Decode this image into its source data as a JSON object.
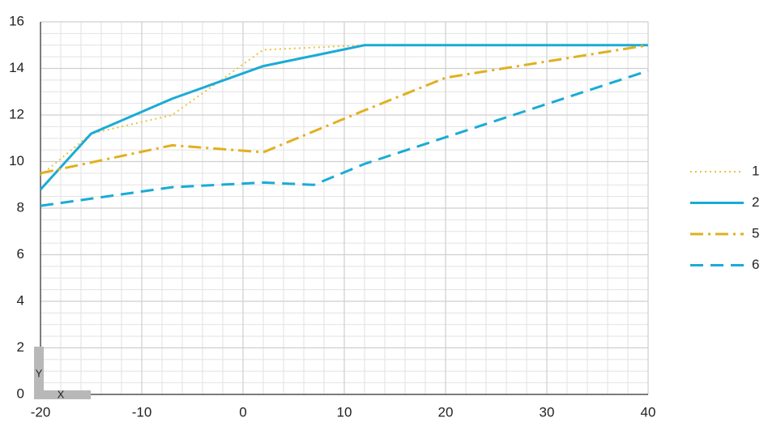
{
  "chart_data": {
    "type": "line",
    "xlabel": "X",
    "ylabel": "Y",
    "xlim": [
      -20,
      40
    ],
    "ylim": [
      0,
      16
    ],
    "xticks": [
      -20,
      -10,
      0,
      10,
      20,
      30,
      40
    ],
    "yticks": [
      0,
      2,
      4,
      6,
      8,
      10,
      12,
      14,
      16
    ],
    "minor_xticks": [
      -18,
      -16,
      -14,
      -12,
      -8,
      -6,
      -4,
      -2,
      2,
      4,
      6,
      8,
      12,
      14,
      16,
      18,
      22,
      24,
      26,
      28,
      32,
      34,
      36,
      38
    ],
    "minor_yticks": [
      0.5,
      1,
      1.5,
      2.5,
      3,
      3.5,
      4.5,
      5,
      5.5,
      6.5,
      7,
      7.5,
      8.5,
      9,
      9.5,
      10.5,
      11,
      11.5,
      12.5,
      13,
      13.5,
      14.5,
      15,
      15.5
    ],
    "grid": true,
    "legend": "right",
    "series": [
      {
        "name": "1",
        "color": "#e8c440",
        "style": "dotted",
        "x": [
          -20,
          -15,
          -7,
          2,
          12,
          40
        ],
        "values": [
          9.4,
          11.2,
          12,
          14.8,
          15,
          15
        ]
      },
      {
        "name": "2",
        "color": "#1aabd6",
        "style": "solid",
        "x": [
          -20,
          -15,
          -7,
          2,
          12,
          40
        ],
        "values": [
          8.8,
          11.2,
          12.7,
          14.1,
          15,
          15
        ]
      },
      {
        "name": "5",
        "color": "#e0b020",
        "style": "dashdot",
        "x": [
          -20,
          -7,
          2,
          12,
          20,
          40
        ],
        "values": [
          9.5,
          10.7,
          10.4,
          12.2,
          13.6,
          15
        ]
      },
      {
        "name": "6",
        "color": "#1aabd6",
        "style": "dashed",
        "x": [
          -20,
          -7,
          2,
          7,
          12,
          40
        ],
        "values": [
          8.1,
          8.9,
          9.1,
          9,
          9.9,
          13.9
        ]
      }
    ]
  }
}
